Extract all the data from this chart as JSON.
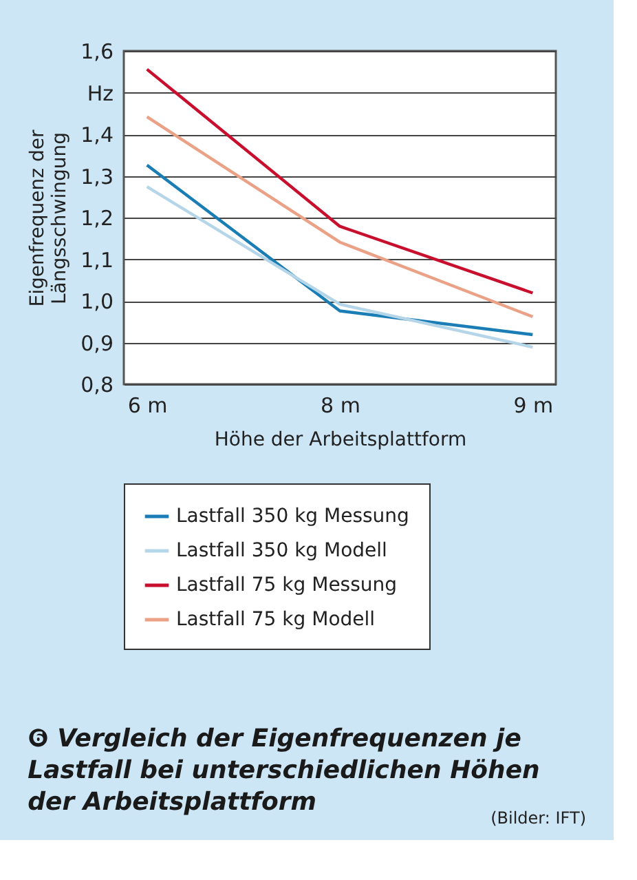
{
  "chart_data": {
    "type": "line",
    "title": "❻ Vergleich der Eigenfrequenzen je\nLastfall bei unterschiedlichen Höhen\nder Arbeitsplattform",
    "xlabel": "Höhe der Arbeitsplattform",
    "ylabel": "Eigenfrequenz der\nLängsschwingung",
    "categories": [
      "6 m",
      "8 m",
      "9 m"
    ],
    "series": [
      {
        "name": "Lastfall 350 kg Messung",
        "color": "#1a7db5",
        "values": [
          1.326,
          0.976,
          0.919
        ]
      },
      {
        "name": "Lastfall 350 kg Modell",
        "color": "#b5d5e8",
        "values": [
          1.274,
          0.992,
          0.889
        ]
      },
      {
        "name": "Lastfall 75 kg Messung",
        "color": "#c8102e",
        "values": [
          1.556,
          1.179,
          1.019
        ]
      },
      {
        "name": "Lastfall 75 kg Modell",
        "color": "#eba186",
        "values": [
          1.442,
          1.141,
          0.962
        ]
      }
    ],
    "ylim": [
      0.8,
      1.6
    ],
    "yticks": [
      {
        "value": 0.8,
        "label": "0,8"
      },
      {
        "value": 0.9,
        "label": "0,9"
      },
      {
        "value": 1.0,
        "label": "1,0"
      },
      {
        "value": 1.1,
        "label": "1,1"
      },
      {
        "value": 1.2,
        "label": "1,2"
      },
      {
        "value": 1.3,
        "label": "1,3"
      },
      {
        "value": 1.4,
        "label": "1,4"
      },
      {
        "value": 1.5,
        "label": "Hz"
      },
      {
        "value": 1.6,
        "label": "1,6"
      }
    ],
    "grid": "y",
    "legend": "bottom",
    "marker": "none",
    "line_style": "solid",
    "annotations": [
      "(Bilder: IFT)"
    ]
  }
}
